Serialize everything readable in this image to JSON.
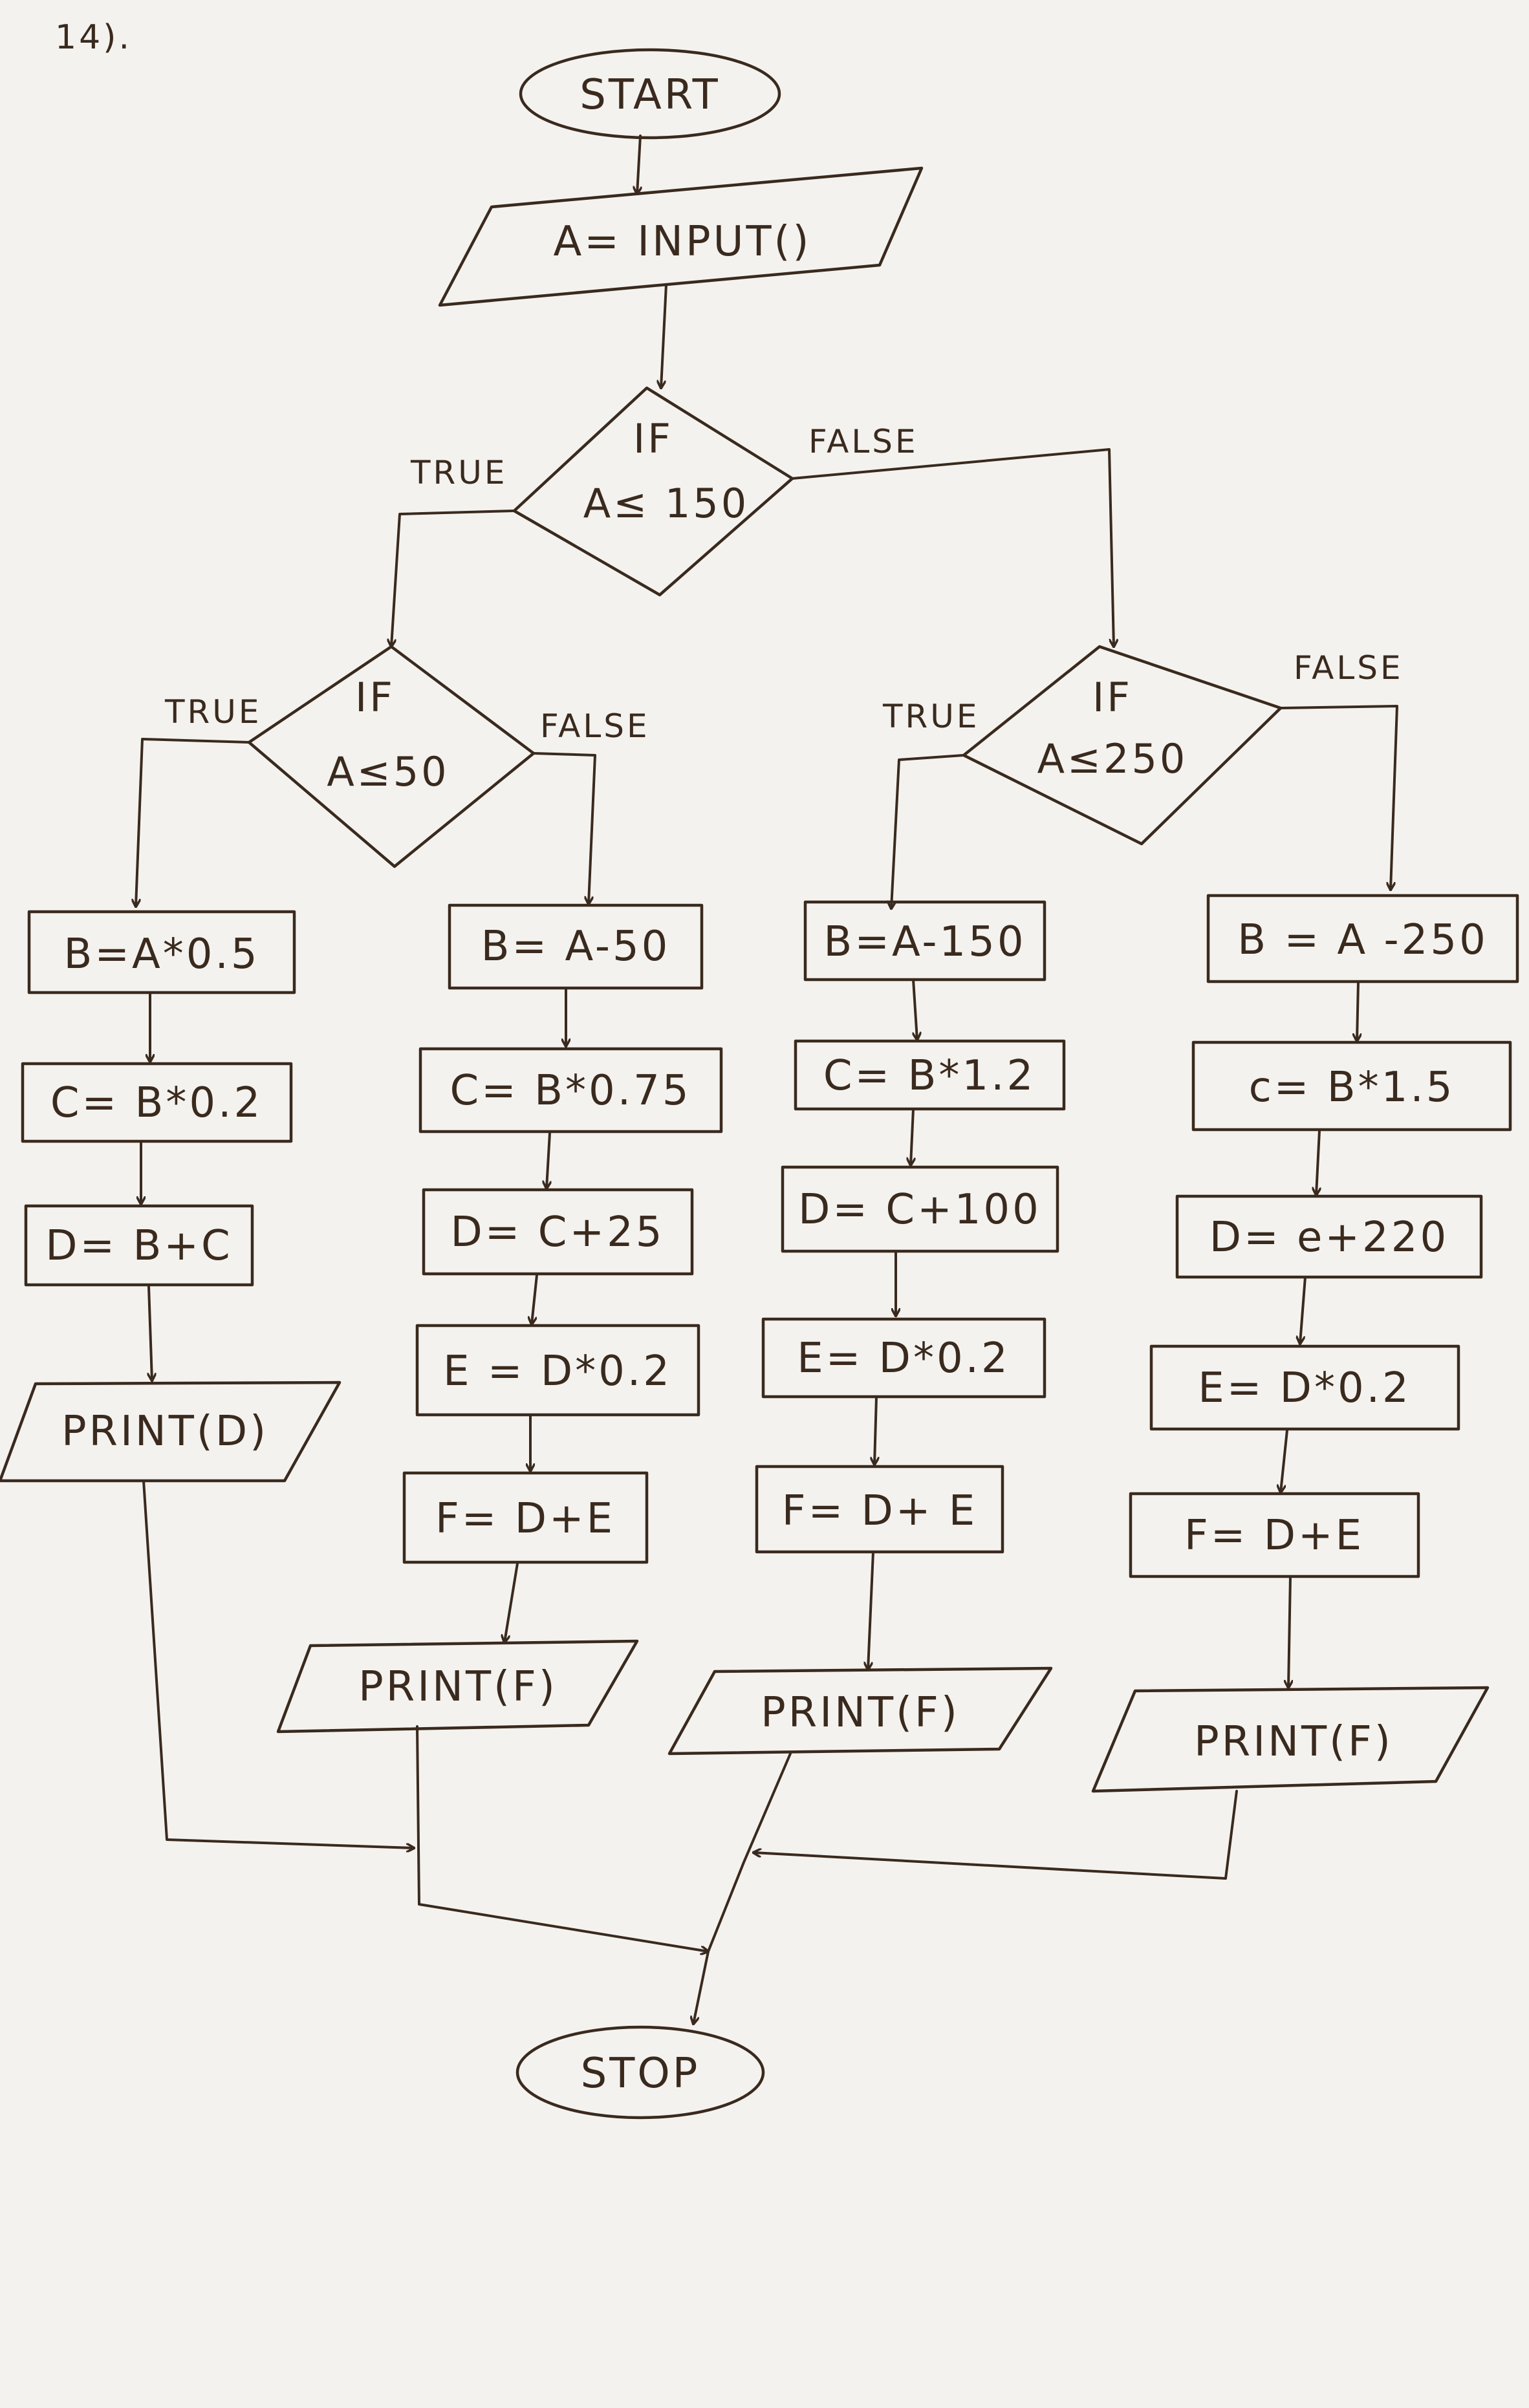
{
  "page_number": "14).",
  "flowchart": {
    "start": "START",
    "input": "A= INPUT()",
    "decision_1": {
      "if": "IF",
      "cond": "A≤ 150",
      "true": "TRUE",
      "false": "FALSE"
    },
    "decision_2": {
      "if": "IF",
      "cond": "A≤50",
      "true": "TRUE",
      "false": "FALSE"
    },
    "decision_3": {
      "if": "IF",
      "cond": "A≤250",
      "true": "TRUE",
      "false": "FALSE"
    },
    "branch_1": [
      "B=A*0.5",
      "C= B*0.2",
      "D= B+C"
    ],
    "branch_1_output": "PRINT(D)",
    "branch_2": [
      "B= A-50",
      "C= B*0.75",
      "D= C+25",
      "E = D*0.2",
      "F= D+E"
    ],
    "branch_2_output": "PRINT(F)",
    "branch_3": [
      "B=A-150",
      "C= B*1.2",
      "D= C+100",
      "E= D*0.2",
      "F= D+ E"
    ],
    "branch_3_output": "PRINT(F)",
    "branch_4": [
      "B = A -250",
      "c= B*1.5",
      "D= e+220",
      "E= D*0.2",
      "F= D+E"
    ],
    "branch_4_output": "PRINT(F)",
    "stop": "STOP"
  }
}
